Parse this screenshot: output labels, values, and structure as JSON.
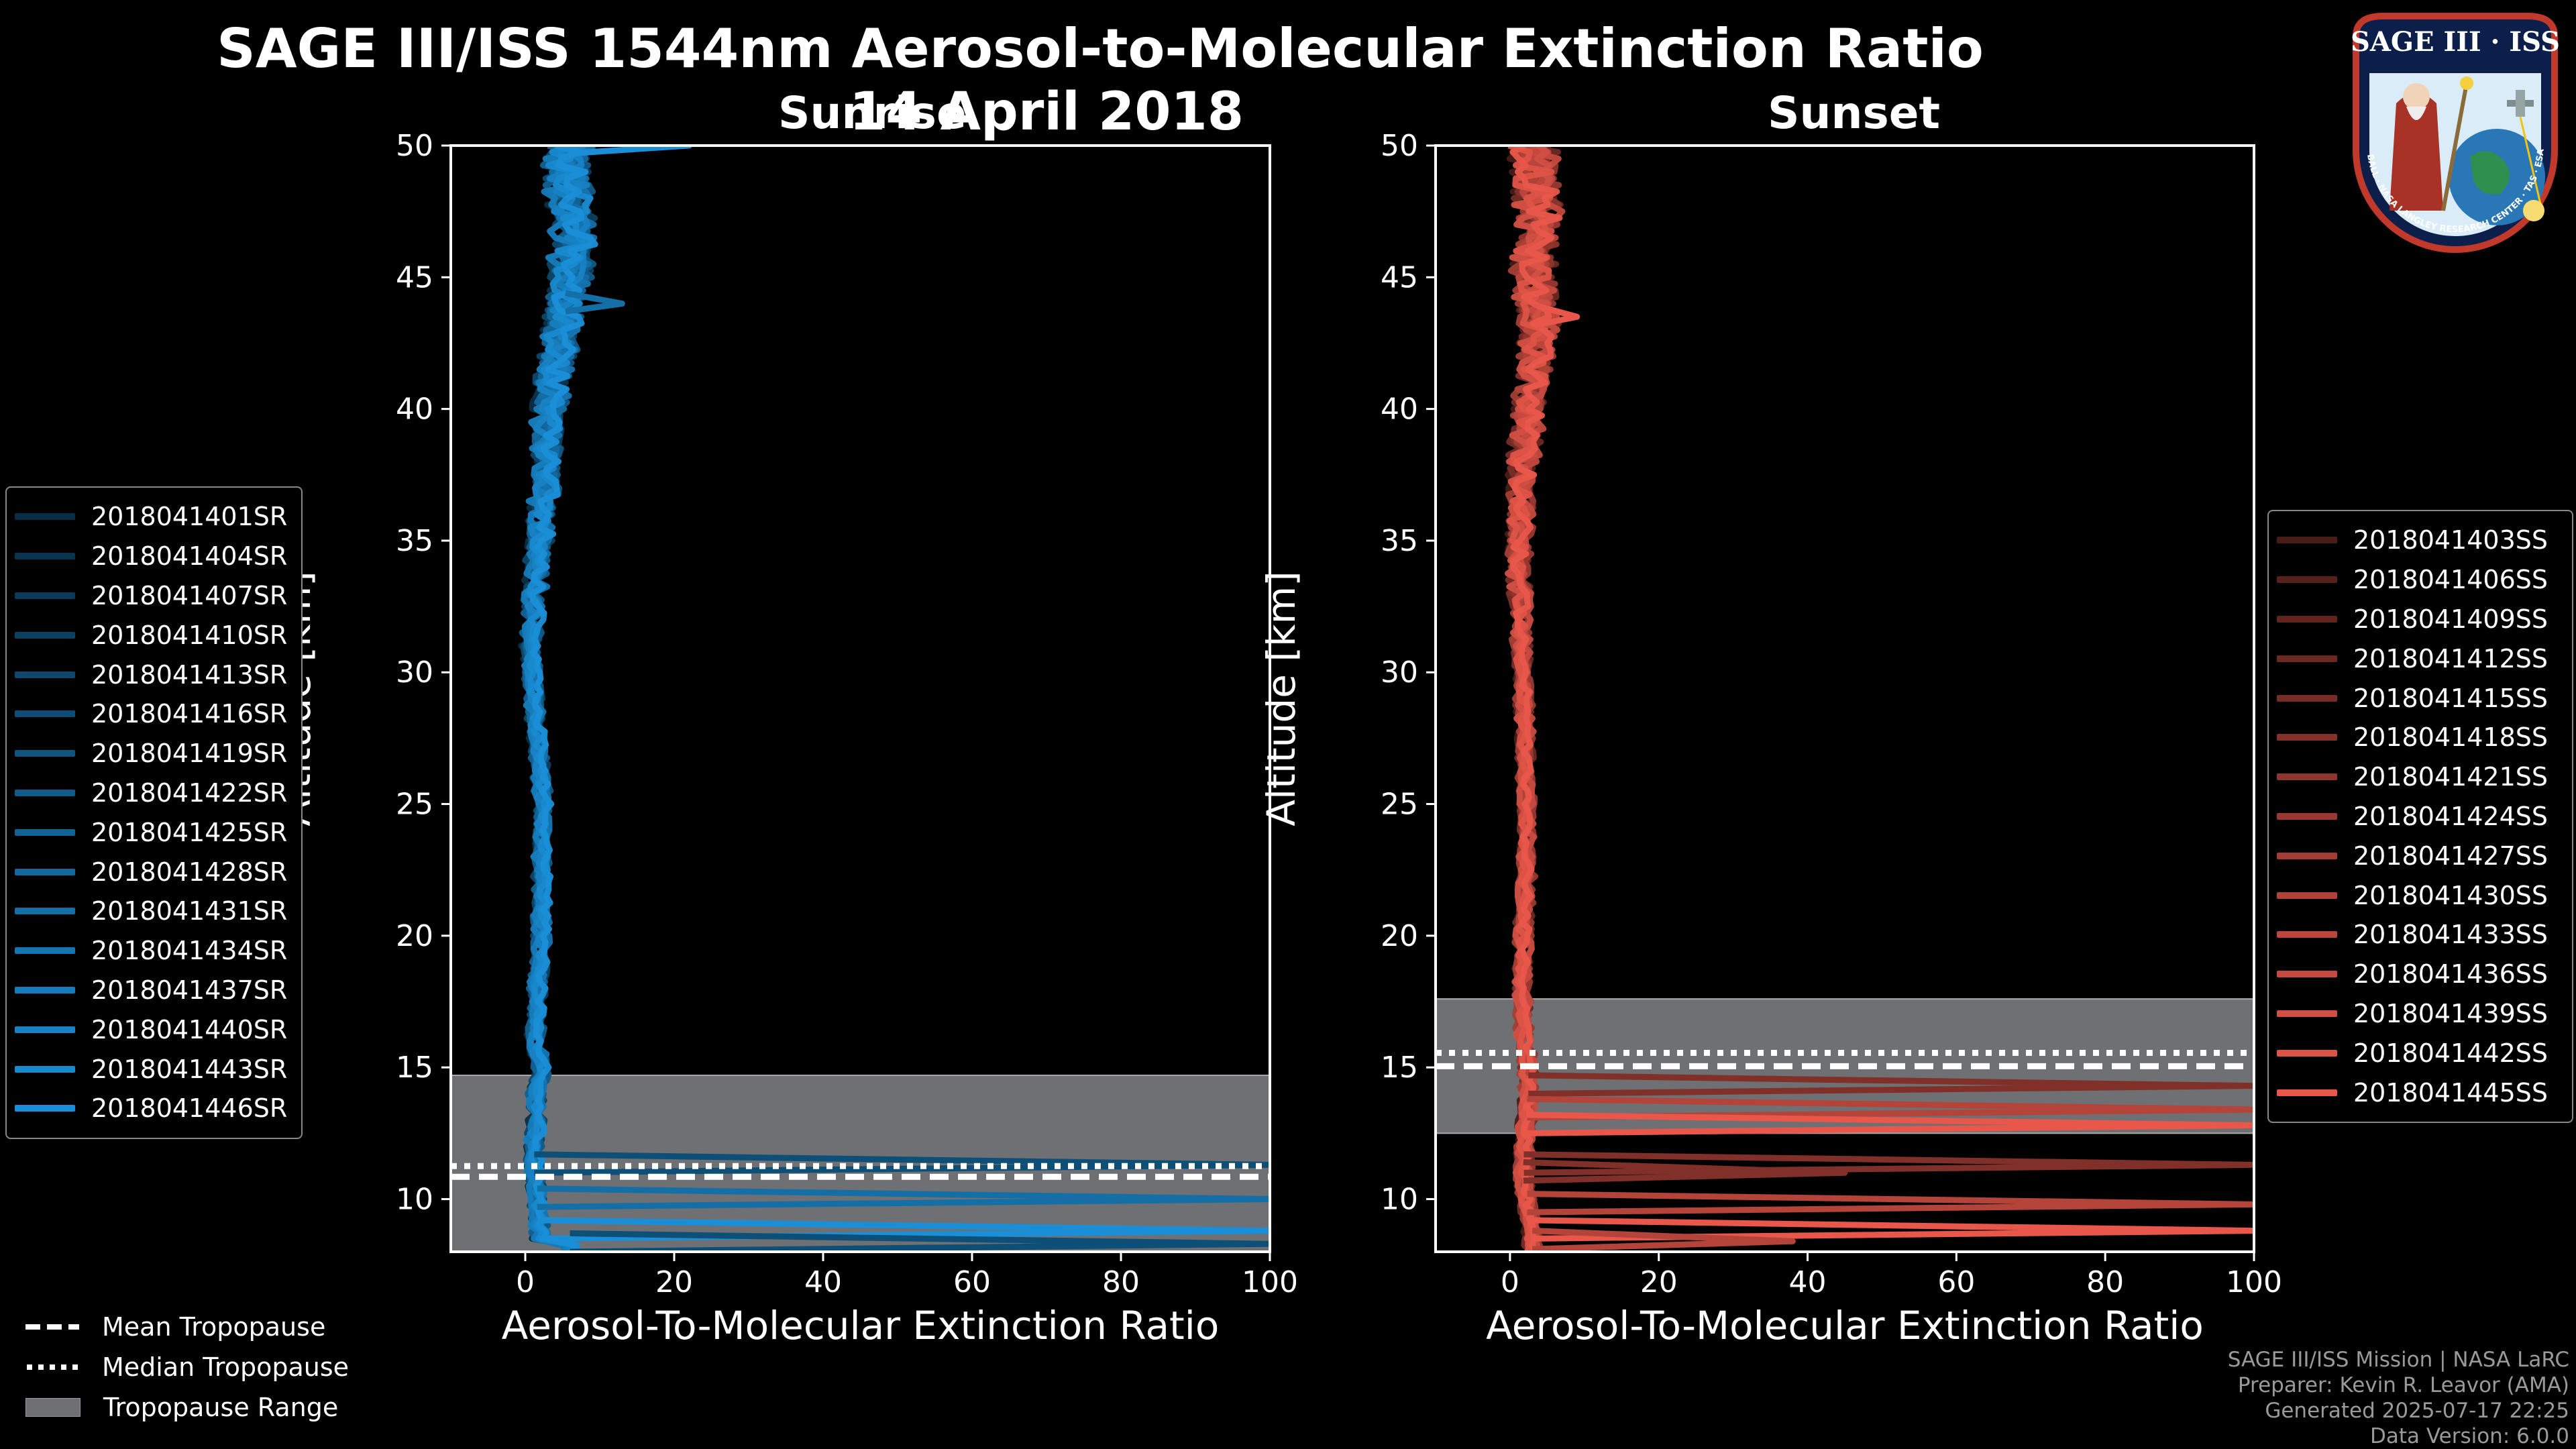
{
  "header": {
    "title": "SAGE III/ISS 1544nm Aerosol-to-Molecular Extinction Ratio",
    "date": "14 April 2018",
    "sunrise_label": "Sunrise",
    "sunset_label": "Sunset"
  },
  "chart_data": [
    {
      "type": "line",
      "name": "Sunrise",
      "xlabel": "Aerosol-To-Molecular Extinction Ratio",
      "ylabel": "Altitude [km]",
      "xlim": [
        -10,
        100
      ],
      "ylim": [
        8,
        50
      ],
      "xticks": [
        "0",
        "20",
        "40",
        "60",
        "80",
        "100"
      ],
      "yticks": [
        "10",
        "15",
        "20",
        "25",
        "30",
        "35",
        "40",
        "45",
        "50"
      ],
      "tropopause": {
        "mean": 11.0,
        "median": 11.1,
        "range": [
          8.0,
          14.7
        ]
      },
      "series_color": "#1a8fd8",
      "altitude_km": [
        8.5,
        10,
        11,
        12,
        13,
        14,
        15,
        16,
        18,
        20,
        22,
        25,
        28,
        31,
        34,
        37,
        40,
        43,
        45,
        47,
        49,
        50
      ],
      "median_ratio": [
        2,
        1.6,
        1.2,
        1.2,
        1.5,
        1.4,
        2.2,
        1.3,
        1.6,
        2.2,
        2.2,
        2.4,
        1.4,
        0.7,
        1.6,
        2.6,
        3.2,
        4.8,
        6.0,
        6.5,
        5.5,
        6.0
      ],
      "excursions": [
        {
          "altitude_km": 11.3,
          "ratio": 100
        },
        {
          "altitude_km": 10.0,
          "ratio": 100
        },
        {
          "altitude_km": 8.8,
          "ratio": 100
        },
        {
          "altitude_km": 8.3,
          "ratio": 100
        },
        {
          "altitude_km": 44.0,
          "ratio": 13
        },
        {
          "altitude_km": 50.0,
          "ratio": 22
        }
      ],
      "legend": [
        "2018041401SR",
        "2018041404SR",
        "2018041407SR",
        "2018041410SR",
        "2018041413SR",
        "2018041416SR",
        "2018041419SR",
        "2018041422SR",
        "2018041425SR",
        "2018041428SR",
        "2018041431SR",
        "2018041434SR",
        "2018041437SR",
        "2018041440SR",
        "2018041443SR",
        "2018041446SR"
      ]
    },
    {
      "type": "line",
      "name": "Sunset",
      "xlabel": "Aerosol-To-Molecular Extinction Ratio",
      "ylabel": "Altitude [km]",
      "xlim": [
        -10,
        100
      ],
      "ylim": [
        8,
        50
      ],
      "xticks": [
        "0",
        "20",
        "40",
        "60",
        "80",
        "100"
      ],
      "yticks": [
        "10",
        "15",
        "20",
        "25",
        "30",
        "35",
        "40",
        "45",
        "50"
      ],
      "tropopause": {
        "mean": 15.2,
        "median": 15.4,
        "range": [
          12.5,
          17.6
        ]
      },
      "series_color": "#e8574a",
      "altitude_km": [
        8.5,
        10,
        11,
        12,
        13,
        14,
        15,
        16,
        18,
        20,
        22,
        25,
        28,
        31,
        34,
        37,
        40,
        43,
        45,
        47,
        49,
        50
      ],
      "median_ratio": [
        3,
        2.2,
        1.8,
        2.0,
        2.2,
        2.5,
        2.4,
        2.0,
        1.6,
        1.8,
        2.2,
        2.2,
        2.0,
        1.6,
        1.2,
        1.5,
        2.6,
        4.0,
        3.0,
        4.0,
        3.2,
        3.0
      ],
      "excursions": [
        {
          "altitude_km": 14.3,
          "ratio": 100
        },
        {
          "altitude_km": 13.4,
          "ratio": 100
        },
        {
          "altitude_km": 12.8,
          "ratio": 100
        },
        {
          "altitude_km": 11.3,
          "ratio": 100
        },
        {
          "altitude_km": 9.8,
          "ratio": 100
        },
        {
          "altitude_km": 8.8,
          "ratio": 100
        },
        {
          "altitude_km": 11.0,
          "ratio": 45
        },
        {
          "altitude_km": 8.4,
          "ratio": 38
        },
        {
          "altitude_km": 43.5,
          "ratio": 9
        }
      ],
      "legend": [
        "2018041403SS",
        "2018041406SS",
        "2018041409SS",
        "2018041412SS",
        "2018041415SS",
        "2018041418SS",
        "2018041421SS",
        "2018041424SS",
        "2018041427SS",
        "2018041430SS",
        "2018041433SS",
        "2018041436SS",
        "2018041439SS",
        "2018041442SS",
        "2018041445SS"
      ]
    }
  ],
  "tropopause_legend": {
    "mean": "Mean Tropopause",
    "median": "Median Tropopause",
    "range": "Tropopause Range"
  },
  "credits": {
    "line1": "SAGE III/ISS Mission | NASA LaRC",
    "line2": "Preparer: Kevin R. Leavor (AMA)",
    "line3": "Generated 2025-07-17 22:25",
    "line4": "Data Version: 6.0.0"
  },
  "logo": {
    "top_text": "SAGE III · ISS",
    "ring_text": "BALL · NASA LANGLEY RESEARCH CENTER · TAS · ESA"
  },
  "colors": {
    "sunrise": "#1a8fd8",
    "sunset": "#e8574a",
    "tropopause_range": "#6e7073"
  }
}
